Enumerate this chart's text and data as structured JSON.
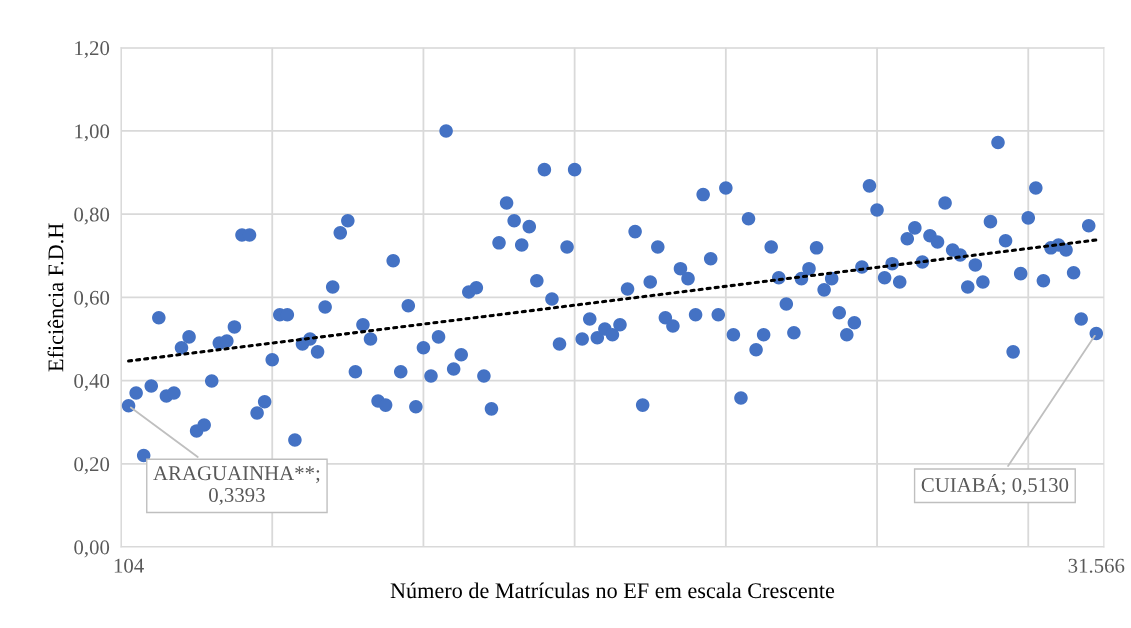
{
  "chart_data": {
    "type": "scatter",
    "xlabel": "Número de Matrículas no EF em escala Crescente",
    "ylabel": "Eficiência F.D.H",
    "categories": [
      "104",
      null,
      null,
      null,
      null,
      null,
      null,
      null,
      null,
      null,
      null,
      null,
      null,
      null,
      null,
      null,
      null,
      null,
      null,
      null,
      null,
      null,
      null,
      null,
      null,
      null,
      null,
      null,
      null,
      null,
      null,
      null,
      null,
      null,
      null,
      null,
      null,
      null,
      null,
      null,
      null,
      null,
      null,
      null,
      null,
      null,
      null,
      null,
      null,
      null,
      null,
      null,
      null,
      null,
      null,
      null,
      null,
      null,
      null,
      null,
      null,
      null,
      null,
      null,
      null,
      null,
      null,
      null,
      null,
      null,
      null,
      null,
      null,
      null,
      null,
      null,
      null,
      null,
      null,
      null,
      null,
      null,
      null,
      null,
      null,
      null,
      null,
      null,
      null,
      null,
      null,
      null,
      null,
      null,
      null,
      null,
      null,
      null,
      null,
      null,
      null,
      null,
      null,
      null,
      null,
      null,
      null,
      null,
      null,
      null,
      null,
      null,
      null,
      null,
      null,
      null,
      null,
      null,
      null,
      null,
      null,
      null,
      null,
      null,
      null,
      null,
      null,
      null,
      "31.566"
    ],
    "ylim": [
      0,
      1.2
    ],
    "yticks": [
      {
        "value": 0,
        "label": "0,00"
      },
      {
        "value": 0.2,
        "label": "0,20"
      },
      {
        "value": 0.4,
        "label": "0,40"
      },
      {
        "value": 0.6,
        "label": "0,60"
      },
      {
        "value": 0.8,
        "label": "0,80"
      },
      {
        "value": 1.0,
        "label": "1,00"
      },
      {
        "value": 1.2,
        "label": "1,20"
      }
    ],
    "grid": true,
    "legend": false,
    "series": [
      {
        "color": "#4472c4",
        "marker": "circle",
        "values": [
          0.3393,
          0.37,
          0.22,
          0.387,
          0.551,
          0.363,
          0.37,
          0.479,
          0.505,
          0.279,
          0.293,
          0.399,
          0.49,
          0.495,
          0.529,
          0.75,
          0.75,
          0.322,
          0.349,
          0.45,
          0.558,
          0.558,
          0.257,
          0.488,
          0.5,
          0.469,
          0.577,
          0.625,
          0.755,
          0.784,
          0.421,
          0.534,
          0.5,
          0.351,
          0.341,
          0.688,
          0.421,
          0.58,
          0.337,
          0.479,
          0.411,
          0.505,
          1.0,
          0.428,
          0.462,
          0.613,
          0.623,
          0.411,
          0.332,
          0.731,
          0.827,
          0.784,
          0.726,
          0.77,
          0.64,
          0.907,
          0.596,
          0.488,
          0.721,
          0.907,
          0.5,
          0.548,
          0.503,
          0.524,
          0.51,
          0.534,
          0.62,
          0.758,
          0.341,
          0.637,
          0.721,
          0.551,
          0.531,
          0.669,
          0.645,
          0.558,
          0.847,
          0.693,
          0.558,
          0.863,
          0.51,
          0.358,
          0.789,
          0.474,
          0.51,
          0.721,
          0.647,
          0.584,
          0.515,
          0.645,
          0.669,
          0.719,
          0.618,
          0.645,
          0.563,
          0.51,
          0.539,
          0.673,
          0.868,
          0.81,
          0.647,
          0.681,
          0.637,
          0.741,
          0.767,
          0.685,
          0.748,
          0.733,
          0.827,
          0.714,
          0.702,
          0.625,
          0.678,
          0.637,
          0.782,
          0.972,
          0.736,
          0.469,
          0.657,
          0.791,
          0.863,
          0.64,
          0.719,
          0.726,
          0.714,
          0.659,
          0.548,
          0.772,
          0.513
        ]
      },
      {
        "type": "line",
        "color": "#000000",
        "marker": "none",
        "line_style": "dotted",
        "values": [
          0.447,
          null,
          null,
          null,
          null,
          null,
          null,
          null,
          null,
          null,
          null,
          null,
          null,
          null,
          null,
          null,
          null,
          null,
          null,
          null,
          null,
          null,
          null,
          null,
          null,
          null,
          null,
          null,
          null,
          null,
          null,
          null,
          null,
          null,
          null,
          null,
          null,
          null,
          null,
          null,
          null,
          null,
          null,
          null,
          null,
          null,
          null,
          null,
          null,
          null,
          null,
          null,
          null,
          null,
          null,
          null,
          null,
          null,
          null,
          null,
          null,
          null,
          null,
          null,
          null,
          null,
          null,
          null,
          null,
          null,
          null,
          null,
          null,
          null,
          null,
          null,
          null,
          null,
          null,
          null,
          null,
          null,
          null,
          null,
          null,
          null,
          null,
          null,
          null,
          null,
          null,
          null,
          null,
          null,
          null,
          null,
          null,
          null,
          null,
          null,
          null,
          null,
          null,
          null,
          null,
          null,
          null,
          null,
          null,
          null,
          null,
          null,
          null,
          null,
          null,
          null,
          null,
          null,
          null,
          null,
          null,
          null,
          null,
          null,
          null,
          null,
          null,
          null,
          0.738
        ]
      }
    ],
    "annotations": [
      {
        "text": "ARAGUAINHA**;\n0,3393",
        "x": "104",
        "y": 0.3393
      },
      {
        "text": "CUIABÁ; 0,5130",
        "x": "31.566",
        "y": 0.513
      }
    ]
  }
}
